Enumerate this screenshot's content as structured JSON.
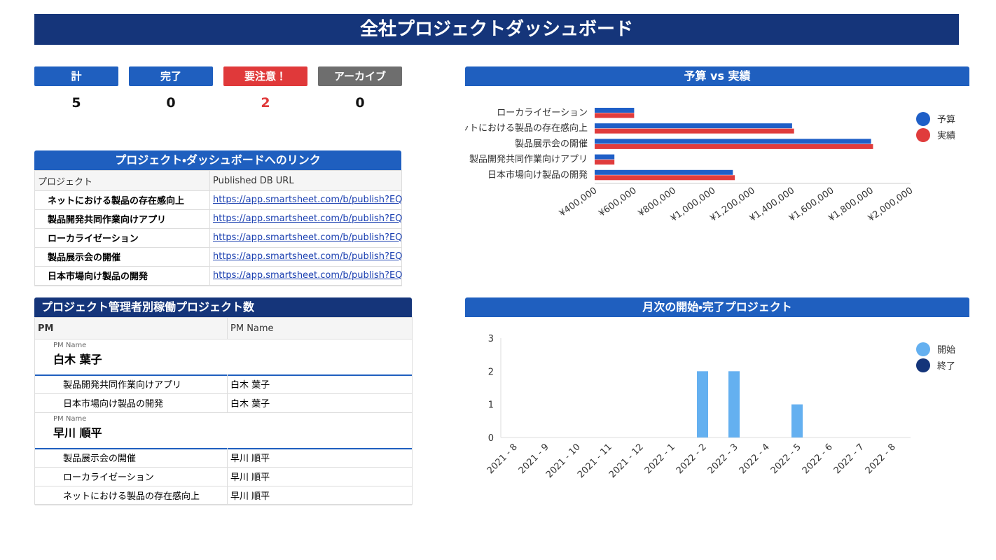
{
  "header": {
    "title": "全社プロジェクトダッシュボード"
  },
  "stats": [
    {
      "label": "計",
      "value": 5,
      "color": "#1f5fbf",
      "value_color": "#111111"
    },
    {
      "label": "完了",
      "value": 0,
      "color": "#1f5fbf",
      "value_color": "#111111"
    },
    {
      "label": "要注意！",
      "value": 2,
      "color": "#e0393a",
      "value_color": "#e0393a"
    },
    {
      "label": "アーカイブ",
      "value": 0,
      "color": "#6e6e6e",
      "value_color": "#111111"
    }
  ],
  "links": {
    "title": "プロジェクト・ダッシュボードへのリンク",
    "columns": [
      "プロジェクト",
      "Published DB URL"
    ],
    "rows": [
      [
        "ネットにおける製品の存在感向上",
        "https://app.smartsheet.com/b/publish?EQBCT"
      ],
      [
        "製品開発共同作業向けアプリ",
        "https://app.smartsheet.com/b/publish?EQBCT"
      ],
      [
        "ローカライゼーション",
        "https://app.smartsheet.com/b/publish?EQBCT"
      ],
      [
        "製品展示会の開催",
        "https://app.smartsheet.com/b/publish?EQBCT"
      ],
      [
        "日本市場向け製品の開発",
        "https://app.smartsheet.com/b/publish?EQBCT"
      ]
    ]
  },
  "pm_table": {
    "title": "プロジェクト管理者別稼働プロジェクト数",
    "columns": [
      "PM",
      "PM Name"
    ],
    "groups": [
      {
        "label": "PM Name",
        "name": "白木 葉子",
        "rows": [
          [
            "製品開発共同作業向けアプリ",
            "白木 葉子"
          ],
          [
            "日本市場向け製品の開発",
            "白木 葉子"
          ]
        ]
      },
      {
        "label": "PM Name",
        "name": "早川 順平",
        "rows": [
          [
            "製品展示会の開催",
            "早川 順平"
          ],
          [
            "ローカライゼーション",
            "早川 順平"
          ],
          [
            "ネットにおける製品の存在感向上",
            "早川 順平"
          ]
        ]
      }
    ]
  },
  "chart_data": [
    {
      "type": "hbar",
      "title": "予算 vs 実績",
      "categories": [
        "ローカライゼーション",
        "ネットにおける製品の存在感向上",
        "製品展示会の開催",
        "製品開発共同作業向けアプリ",
        "日本市場向け製品の開発"
      ],
      "series": [
        {
          "name": "予算",
          "color": "#1f5fc7",
          "values": [
            600000,
            1400000,
            1800000,
            500000,
            1100000
          ]
        },
        {
          "name": "実績",
          "color": "#e03c3c",
          "values": [
            600000,
            1410000,
            1810000,
            500000,
            1110000
          ]
        }
      ],
      "xlim": [
        400000,
        2000000
      ],
      "xticks": [
        {
          "value": 400000,
          "label": "¥400,000"
        },
        {
          "value": 600000,
          "label": "¥600,000"
        },
        {
          "value": 800000,
          "label": "¥800,000"
        },
        {
          "value": 1000000,
          "label": "¥1,000,000"
        },
        {
          "value": 1200000,
          "label": "¥1,200,000"
        },
        {
          "value": 1400000,
          "label": "¥1,400,000"
        },
        {
          "value": 1600000,
          "label": "¥1,600,000"
        },
        {
          "value": 1800000,
          "label": "¥1,800,000"
        },
        {
          "value": 2000000,
          "label": "¥2,000,000"
        }
      ],
      "grid": false,
      "legend": "right"
    },
    {
      "type": "bar",
      "title": "月次の開始・完了プロジェクト",
      "categories": [
        "2021 - 8",
        "2021 - 9",
        "2021 - 10",
        "2021 - 11",
        "2021 - 12",
        "2022 - 1",
        "2022 - 2",
        "2022 - 3",
        "2022 - 4",
        "2022 - 5",
        "2022 - 6",
        "2022 - 7",
        "2022 - 8"
      ],
      "series": [
        {
          "name": "開始",
          "color": "#64b0f0",
          "values": [
            0,
            0,
            0,
            0,
            0,
            0,
            2,
            2,
            0,
            1,
            0,
            0,
            0
          ]
        },
        {
          "name": "終了",
          "color": "#15357a",
          "values": [
            0,
            0,
            0,
            0,
            0,
            0,
            0,
            0,
            0,
            0,
            0,
            0,
            0
          ]
        }
      ],
      "ylim": [
        0,
        3
      ],
      "yticks": [
        0,
        1,
        2,
        3
      ],
      "grid": false,
      "legend": "right"
    }
  ]
}
